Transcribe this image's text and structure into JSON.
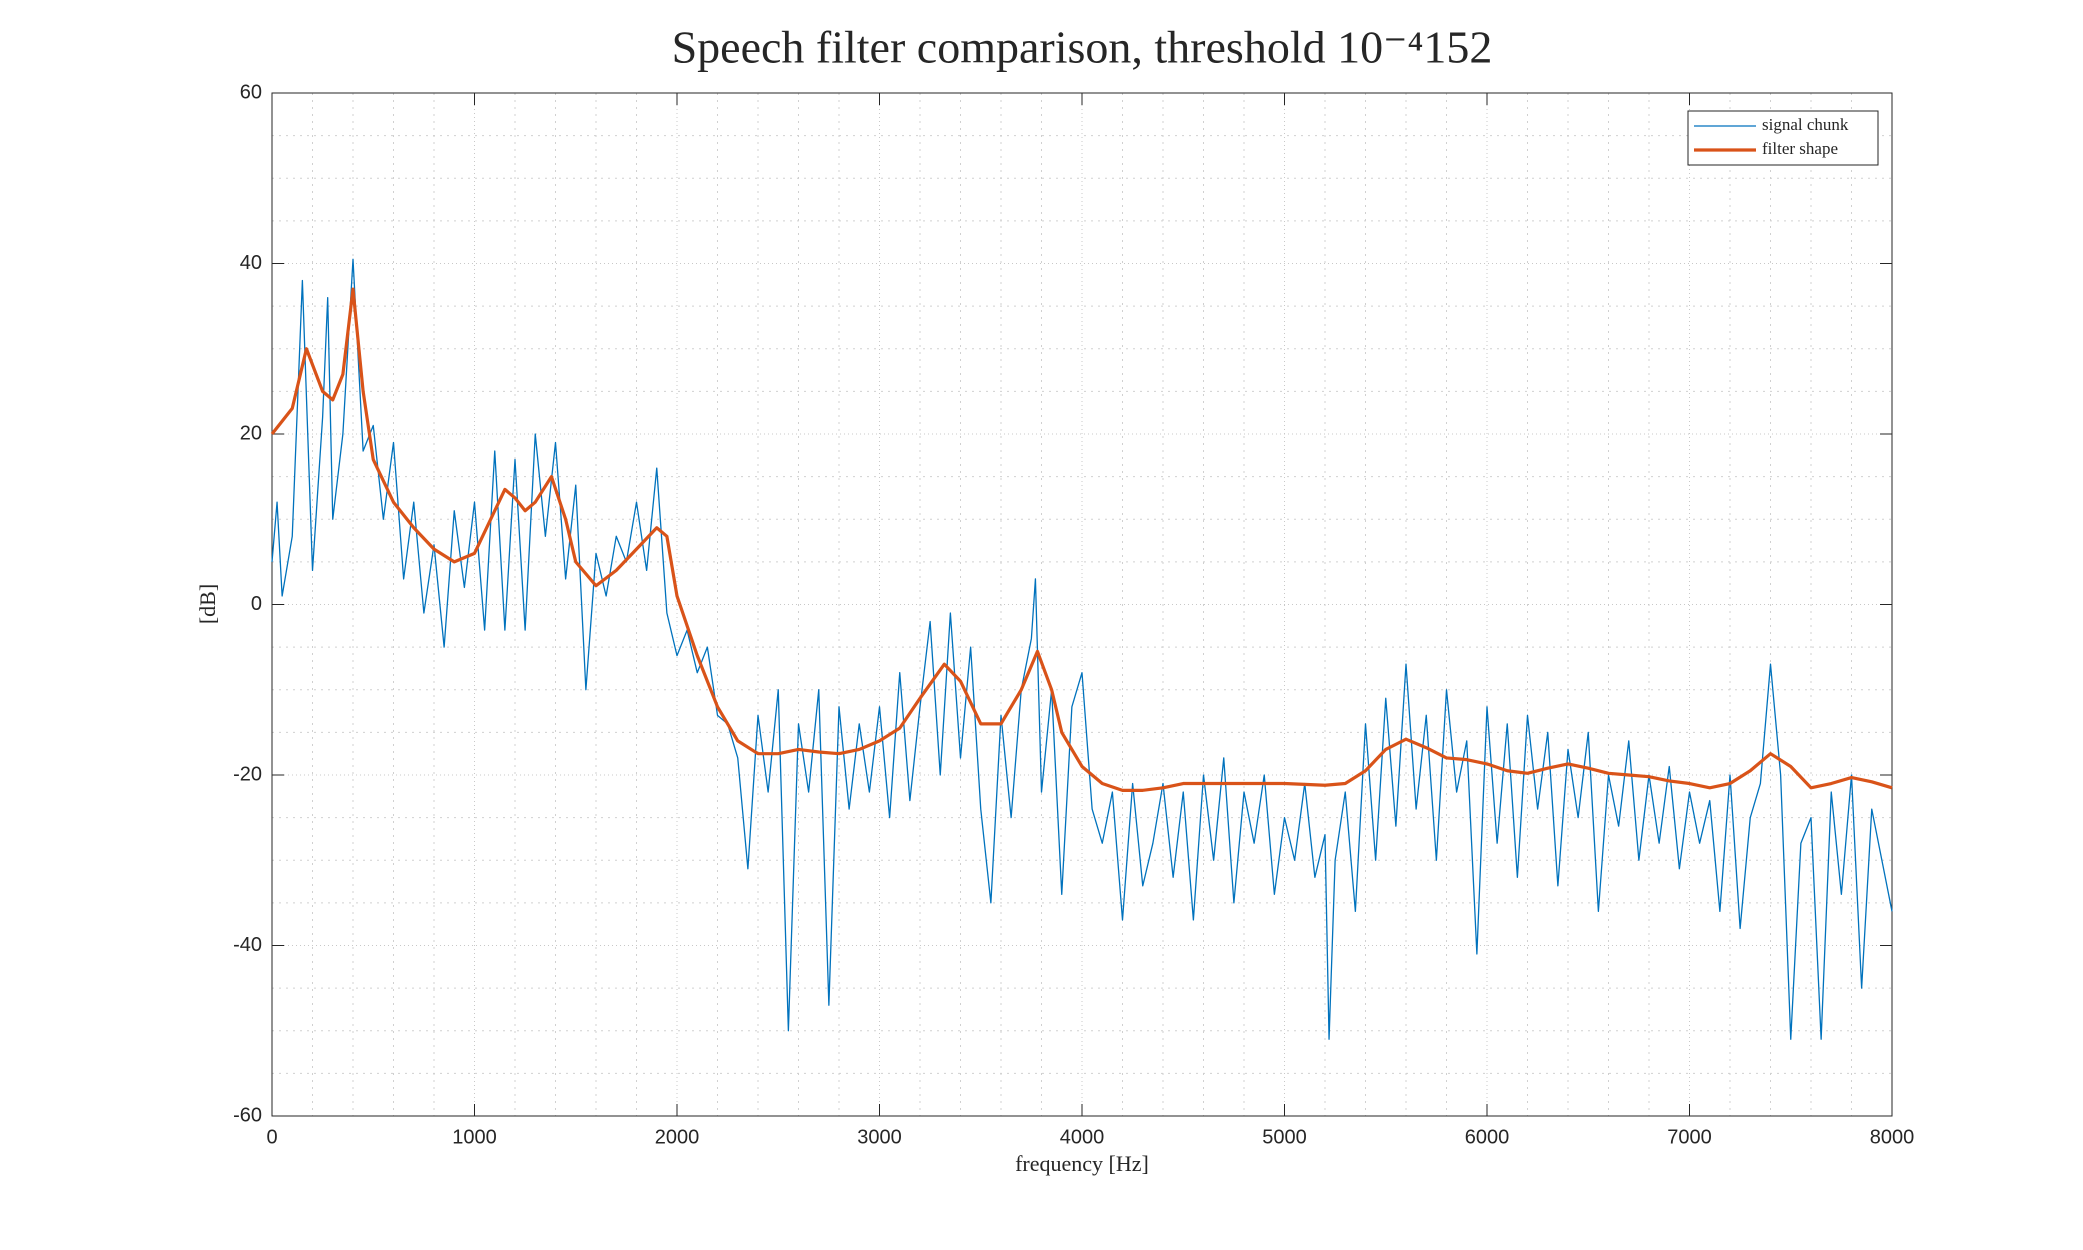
{
  "chart_data": {
    "type": "line",
    "title": "Speech filter comparison, threshold 10⁻⁴152",
    "xlabel": "frequency [Hz]",
    "ylabel": "[dB]",
    "xlim": [
      0,
      8000
    ],
    "xticks": [
      0,
      1000,
      2000,
      3000,
      4000,
      5000,
      6000,
      7000,
      8000
    ],
    "ylim": [
      -60,
      60
    ],
    "yticks": [
      -60,
      -40,
      -20,
      0,
      20,
      40,
      60
    ],
    "grid": true,
    "minor_grid": true,
    "legend": "upper right",
    "series": [
      {
        "name": "signal chunk",
        "color": "#0072bd",
        "x": [
          0,
          25,
          50,
          100,
          150,
          200,
          250,
          275,
          300,
          350,
          400,
          450,
          500,
          550,
          600,
          650,
          700,
          750,
          800,
          850,
          900,
          950,
          1000,
          1050,
          1100,
          1150,
          1200,
          1250,
          1300,
          1350,
          1400,
          1450,
          1500,
          1550,
          1600,
          1650,
          1700,
          1750,
          1800,
          1850,
          1900,
          1950,
          2000,
          2050,
          2100,
          2150,
          2200,
          2250,
          2300,
          2350,
          2400,
          2450,
          2500,
          2550,
          2600,
          2650,
          2700,
          2750,
          2800,
          2850,
          2900,
          2950,
          3000,
          3050,
          3100,
          3150,
          3200,
          3250,
          3300,
          3350,
          3400,
          3450,
          3500,
          3550,
          3600,
          3650,
          3700,
          3750,
          3770,
          3800,
          3850,
          3900,
          3950,
          4000,
          4050,
          4100,
          4150,
          4200,
          4250,
          4300,
          4350,
          4400,
          4450,
          4500,
          4550,
          4600,
          4650,
          4700,
          4750,
          4800,
          4850,
          4900,
          4950,
          5000,
          5050,
          5100,
          5150,
          5200,
          5220,
          5250,
          5300,
          5350,
          5400,
          5450,
          5500,
          5550,
          5600,
          5650,
          5700,
          5750,
          5800,
          5850,
          5900,
          5950,
          6000,
          6050,
          6100,
          6150,
          6200,
          6250,
          6300,
          6350,
          6400,
          6450,
          6500,
          6550,
          6600,
          6650,
          6700,
          6750,
          6800,
          6850,
          6900,
          6950,
          7000,
          7050,
          7100,
          7150,
          7200,
          7250,
          7300,
          7350,
          7400,
          7450,
          7500,
          7550,
          7600,
          7650,
          7700,
          7750,
          7800,
          7850,
          7900,
          7950,
          8000
        ],
        "values": [
          5,
          12,
          1,
          8,
          38,
          4,
          22,
          36,
          10,
          20,
          40.5,
          18,
          21,
          10,
          19,
          3,
          12,
          -1,
          7,
          -5,
          11,
          2,
          12,
          -3,
          18,
          -3,
          17,
          -3,
          20,
          8,
          19,
          3,
          14,
          -10,
          6,
          1,
          8,
          5,
          12,
          4,
          16,
          -1,
          -6,
          -3,
          -8,
          -5,
          -13,
          -14,
          -18,
          -31,
          -13,
          -22,
          -10,
          -50,
          -14,
          -22,
          -10,
          -47,
          -12,
          -24,
          -14,
          -22,
          -12,
          -25,
          -8,
          -23,
          -12,
          -2,
          -20,
          -1,
          -18,
          -5,
          -24,
          -35,
          -13,
          -25,
          -10,
          -4,
          3,
          -22,
          -10,
          -34,
          -12,
          -8,
          -24,
          -28,
          -22,
          -37,
          -21,
          -33,
          -28,
          -21,
          -32,
          -22,
          -37,
          -20,
          -30,
          -18,
          -35,
          -22,
          -28,
          -20,
          -34,
          -25,
          -30,
          -21,
          -32,
          -27,
          -51,
          -30,
          -22,
          -36,
          -14,
          -30,
          -11,
          -26,
          -7,
          -24,
          -13,
          -30,
          -10,
          -22,
          -16,
          -41,
          -12,
          -28,
          -14,
          -32,
          -13,
          -24,
          -15,
          -33,
          -17,
          -25,
          -15,
          -36,
          -20,
          -26,
          -16,
          -30,
          -20,
          -28,
          -19,
          -31,
          -22,
          -28,
          -23,
          -36,
          -20,
          -38,
          -25,
          -21,
          -7,
          -20,
          -51,
          -28,
          -25,
          -51,
          -22,
          -34,
          -20,
          -45,
          -24,
          -30,
          -36
        ]
      },
      {
        "name": "filter shape",
        "color": "#d95319",
        "x": [
          0,
          100,
          170,
          250,
          300,
          350,
          400,
          450,
          500,
          600,
          700,
          800,
          900,
          1000,
          1100,
          1150,
          1200,
          1250,
          1300,
          1380,
          1450,
          1500,
          1600,
          1700,
          1800,
          1900,
          1950,
          2000,
          2100,
          2200,
          2300,
          2400,
          2500,
          2600,
          2700,
          2800,
          2900,
          3000,
          3100,
          3200,
          3320,
          3400,
          3500,
          3600,
          3700,
          3780,
          3850,
          3900,
          4000,
          4100,
          4200,
          4300,
          4400,
          4500,
          5000,
          5200,
          5300,
          5400,
          5500,
          5600,
          5700,
          5800,
          5900,
          6000,
          6100,
          6200,
          6300,
          6400,
          6500,
          6600,
          6700,
          6800,
          6900,
          7000,
          7100,
          7200,
          7300,
          7400,
          7500,
          7600,
          7700,
          7800,
          7900,
          8000
        ],
        "values": [
          20,
          23,
          30,
          25,
          24,
          27,
          37,
          25,
          17,
          12,
          9,
          6.5,
          5,
          6,
          11,
          13.5,
          12.5,
          11,
          12,
          15,
          10,
          5,
          2.2,
          4,
          6.5,
          9,
          8,
          1,
          -6,
          -12,
          -16,
          -17.5,
          -17.5,
          -17,
          -17.3,
          -17.5,
          -17,
          -16,
          -14.5,
          -11,
          -7,
          -9,
          -14,
          -14,
          -10,
          -5.5,
          -10,
          -15,
          -19,
          -21,
          -21.8,
          -21.8,
          -21.5,
          -21,
          -21,
          -21.2,
          -21,
          -19.5,
          -17,
          -15.8,
          -16.8,
          -18,
          -18.2,
          -18.7,
          -19.5,
          -19.8,
          -19.2,
          -18.7,
          -19.2,
          -19.8,
          -20,
          -20.2,
          -20.7,
          -21,
          -21.5,
          -21,
          -19.5,
          -17.5,
          -19,
          -21.5,
          -21,
          -20.3,
          -20.8,
          -21.5
        ]
      }
    ]
  }
}
